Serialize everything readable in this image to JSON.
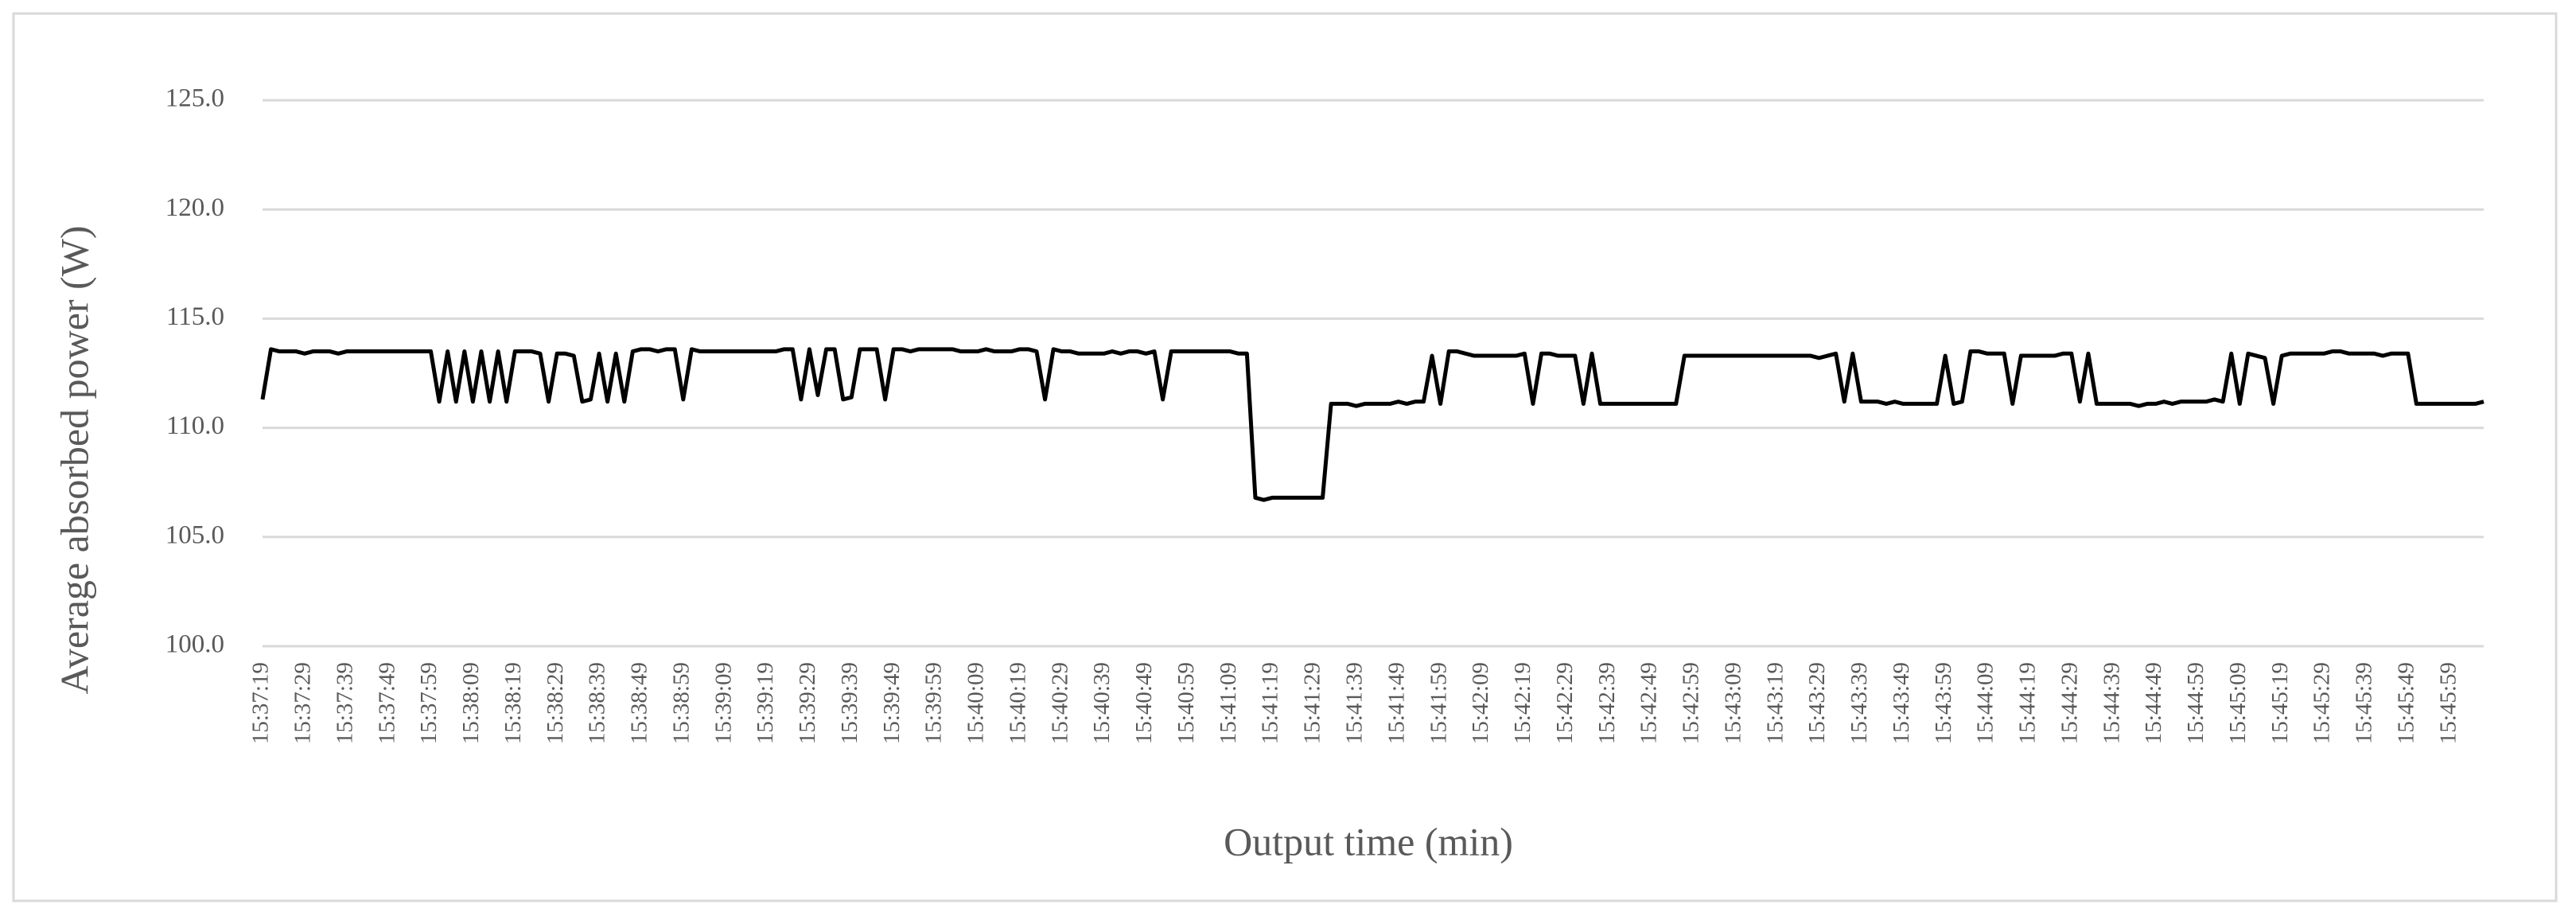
{
  "chart_data": {
    "type": "line",
    "x_label": "Output time (min)",
    "y_label": "Average absorbed power (W)",
    "categories": [
      "15:37:19",
      null,
      null,
      null,
      null,
      "15:37:29",
      null,
      null,
      null,
      null,
      "15:37:39",
      null,
      null,
      null,
      null,
      "15:37:49",
      null,
      null,
      null,
      null,
      "15:37:59",
      null,
      null,
      null,
      null,
      "15:38:09",
      null,
      null,
      null,
      null,
      "15:38:19",
      null,
      null,
      null,
      null,
      "15:38:29",
      null,
      null,
      null,
      null,
      "15:38:39",
      null,
      null,
      null,
      null,
      "15:38:49",
      null,
      null,
      null,
      null,
      "15:38:59",
      null,
      null,
      null,
      null,
      "15:39:09",
      null,
      null,
      null,
      null,
      "15:39:19",
      null,
      null,
      null,
      null,
      "15:39:29",
      null,
      null,
      null,
      null,
      "15:39:39",
      null,
      null,
      null,
      null,
      "15:39:49",
      null,
      null,
      null,
      null,
      "15:39:59",
      null,
      null,
      null,
      null,
      "15:40:09",
      null,
      null,
      null,
      null,
      "15:40:19",
      null,
      null,
      null,
      null,
      "15:40:29",
      null,
      null,
      null,
      null,
      "15:40:39",
      null,
      null,
      null,
      null,
      "15:40:49",
      null,
      null,
      null,
      null,
      "15:40:59",
      null,
      null,
      null,
      null,
      "15:41:09",
      null,
      null,
      null,
      null,
      "15:41:19",
      null,
      null,
      null,
      null,
      "15:41:29",
      null,
      null,
      null,
      null,
      "15:41:39",
      null,
      null,
      null,
      null,
      "15:41:49",
      null,
      null,
      null,
      null,
      "15:41:59",
      null,
      null,
      null,
      null,
      "15:42:09",
      null,
      null,
      null,
      null,
      "15:42:19",
      null,
      null,
      null,
      null,
      "15:42:29",
      null,
      null,
      null,
      null,
      "15:42:39",
      null,
      null,
      null,
      null,
      "15:42:49",
      null,
      null,
      null,
      null,
      "15:42:59",
      null,
      null,
      null,
      null,
      "15:43:09",
      null,
      null,
      null,
      null,
      "15:43:19",
      null,
      null,
      null,
      null,
      "15:43:29",
      null,
      null,
      null,
      null,
      "15:43:39",
      null,
      null,
      null,
      null,
      "15:43:49",
      null,
      null,
      null,
      null,
      "15:43:59",
      null,
      null,
      null,
      null,
      "15:44:09",
      null,
      null,
      null,
      null,
      "15:44:19",
      null,
      null,
      null,
      null,
      "15:44:29",
      null,
      null,
      null,
      null,
      "15:44:39",
      null,
      null,
      null,
      null,
      "15:44:49",
      null,
      null,
      null,
      null,
      "15:44:59",
      null,
      null,
      null,
      null,
      "15:45:09",
      null,
      null,
      null,
      null,
      "15:45:19",
      null,
      null,
      null,
      null,
      "15:45:29",
      null,
      null,
      null,
      null,
      "15:45:39",
      null,
      null,
      null,
      null,
      "15:45:49",
      null,
      null,
      null,
      null,
      "15:45:59",
      null,
      null,
      null,
      null
    ],
    "values": [
      111.3,
      113.6,
      113.5,
      113.5,
      113.5,
      113.4,
      113.5,
      113.5,
      113.5,
      113.4,
      113.5,
      113.5,
      113.5,
      113.5,
      113.5,
      113.5,
      113.5,
      113.5,
      113.5,
      113.5,
      113.5,
      111.2,
      113.5,
      111.2,
      113.5,
      111.2,
      113.5,
      111.2,
      113.5,
      111.2,
      113.5,
      113.5,
      113.5,
      113.4,
      111.2,
      113.4,
      113.4,
      113.3,
      111.2,
      111.3,
      113.4,
      111.2,
      113.4,
      111.2,
      113.5,
      113.6,
      113.6,
      113.5,
      113.6,
      113.6,
      111.3,
      113.6,
      113.5,
      113.5,
      113.5,
      113.5,
      113.5,
      113.5,
      113.5,
      113.5,
      113.5,
      113.5,
      113.6,
      113.6,
      111.3,
      113.6,
      111.5,
      113.6,
      113.6,
      111.3,
      111.4,
      113.6,
      113.6,
      113.6,
      111.3,
      113.6,
      113.6,
      113.5,
      113.6,
      113.6,
      113.6,
      113.6,
      113.6,
      113.5,
      113.5,
      113.5,
      113.6,
      113.5,
      113.5,
      113.5,
      113.6,
      113.6,
      113.5,
      111.3,
      113.6,
      113.5,
      113.5,
      113.4,
      113.4,
      113.4,
      113.4,
      113.5,
      113.4,
      113.5,
      113.5,
      113.4,
      113.5,
      111.3,
      113.5,
      113.5,
      113.5,
      113.5,
      113.5,
      113.5,
      113.5,
      113.5,
      113.4,
      113.4,
      106.8,
      106.7,
      106.8,
      106.8,
      106.8,
      106.8,
      106.8,
      106.8,
      106.8,
      111.1,
      111.1,
      111.1,
      111.0,
      111.1,
      111.1,
      111.1,
      111.1,
      111.2,
      111.1,
      111.2,
      111.2,
      113.3,
      111.1,
      113.5,
      113.5,
      113.4,
      113.3,
      113.3,
      113.3,
      113.3,
      113.3,
      113.3,
      113.4,
      111.1,
      113.4,
      113.4,
      113.3,
      113.3,
      113.3,
      111.1,
      113.4,
      111.1,
      111.1,
      111.1,
      111.1,
      111.1,
      111.1,
      111.1,
      111.1,
      111.1,
      111.1,
      113.3,
      113.3,
      113.3,
      113.3,
      113.3,
      113.3,
      113.3,
      113.3,
      113.3,
      113.3,
      113.3,
      113.3,
      113.3,
      113.3,
      113.3,
      113.3,
      113.2,
      113.3,
      113.4,
      111.2,
      113.4,
      111.2,
      111.2,
      111.2,
      111.1,
      111.2,
      111.1,
      111.1,
      111.1,
      111.1,
      111.1,
      113.3,
      111.1,
      111.2,
      113.5,
      113.5,
      113.4,
      113.4,
      113.4,
      111.1,
      113.3,
      113.3,
      113.3,
      113.3,
      113.3,
      113.4,
      113.4,
      111.2,
      113.4,
      111.1,
      111.1,
      111.1,
      111.1,
      111.1,
      111.0,
      111.1,
      111.1,
      111.2,
      111.1,
      111.2,
      111.2,
      111.2,
      111.2,
      111.3,
      111.2,
      113.4,
      111.1,
      113.4,
      113.3,
      113.2,
      111.1,
      113.3,
      113.4,
      113.4,
      113.4,
      113.4,
      113.4,
      113.5,
      113.5,
      113.4,
      113.4,
      113.4,
      113.4,
      113.3,
      113.4,
      113.4,
      113.4,
      111.1,
      111.1,
      111.1,
      111.1,
      111.1,
      111.1,
      111.1,
      111.1,
      111.2
    ],
    "color": "#000000",
    "ylim": [
      100,
      125
    ],
    "yticks": [
      {
        "value": 100,
        "label": "100.0"
      },
      {
        "value": 105,
        "label": "105.0"
      },
      {
        "value": 110,
        "label": "110.0"
      },
      {
        "value": 115,
        "label": "115.0"
      },
      {
        "value": 120,
        "label": "120.0"
      },
      {
        "value": 125,
        "label": "125.0"
      }
    ],
    "grid": true
  }
}
